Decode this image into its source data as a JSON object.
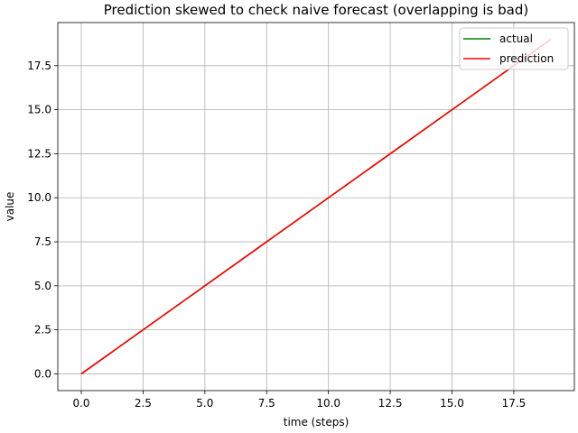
{
  "chart_data": {
    "type": "line",
    "title": "Prediction skewed to check naive forecast (overlapping is bad)",
    "xlabel": "time (steps)",
    "ylabel": "value",
    "xlim": [
      -0.95,
      19.95
    ],
    "ylim": [
      -0.95,
      19.95
    ],
    "grid": true,
    "legend_position": "top-right",
    "x_ticks": [
      "0.0",
      "2.5",
      "5.0",
      "7.5",
      "10.0",
      "12.5",
      "15.0",
      "17.5"
    ],
    "y_ticks": [
      "0.0",
      "2.5",
      "5.0",
      "7.5",
      "10.0",
      "12.5",
      "15.0",
      "17.5"
    ],
    "series": [
      {
        "name": "actual",
        "color": "#008000",
        "x": [
          0,
          1,
          2,
          3,
          4,
          5,
          6,
          7,
          8,
          9,
          10,
          11,
          12,
          13,
          14,
          15,
          16,
          17,
          18
        ],
        "y": [
          0,
          1,
          2,
          3,
          4,
          5,
          6,
          7,
          8,
          9,
          10,
          11,
          12,
          13,
          14,
          15,
          16,
          17,
          18
        ]
      },
      {
        "name": "prediction",
        "color": "#ff0000",
        "x": [
          0,
          1,
          2,
          3,
          4,
          5,
          6,
          7,
          8,
          9,
          10,
          11,
          12,
          13,
          14,
          15,
          16,
          17,
          18,
          19
        ],
        "y": [
          0,
          1,
          2,
          3,
          4,
          5,
          6,
          7,
          8,
          9,
          10,
          11,
          12,
          13,
          14,
          15,
          16,
          17,
          18,
          19
        ]
      }
    ]
  }
}
